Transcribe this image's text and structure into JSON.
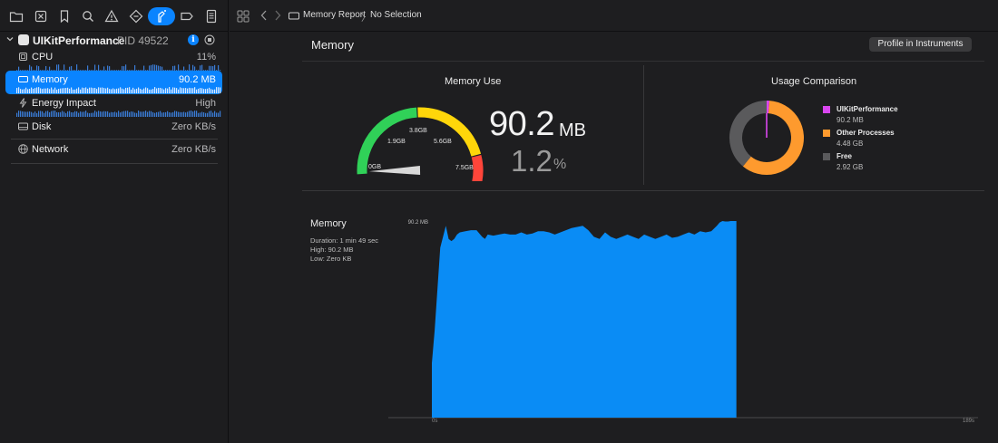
{
  "toolbar": {
    "icons": [
      "folder-icon",
      "close-square-icon",
      "bookmark-icon",
      "search-icon",
      "warning-icon",
      "tag-diamond-icon",
      "debug-spray-icon",
      "label-tag-icon",
      "report-list-icon"
    ]
  },
  "process": {
    "name": "UIKitPerformance",
    "pid": "PID 49522"
  },
  "gauges": [
    {
      "label": "CPU",
      "value": "11%",
      "icon": "cpu-chip-icon"
    },
    {
      "label": "Memory",
      "value": "90.2 MB",
      "icon": "memory-icon",
      "selected": true
    },
    {
      "label": "Energy Impact",
      "value": "High",
      "icon": "bolt-icon"
    },
    {
      "label": "Disk",
      "value": "Zero KB/s",
      "icon": "disk-icon"
    },
    {
      "label": "Network",
      "value": "Zero KB/s",
      "icon": "globe-icon"
    }
  ],
  "breadcrumb": {
    "report": "Memory Report",
    "separator": "〉",
    "selection": "No Selection"
  },
  "report": {
    "title": "Memory",
    "profile_button": "Profile in Instruments"
  },
  "memory_use": {
    "title": "Memory Use",
    "gauge_labels": [
      "0GB",
      "1.9GB",
      "3.8GB",
      "5.6GB",
      "7.5GB"
    ],
    "value": "90.2",
    "unit": "MB",
    "percent": "1.2",
    "percent_unit": "%",
    "needle_fraction": 0.012,
    "colors": {
      "green": "#30d158",
      "yellow": "#ffd60a",
      "red": "#ff453a"
    }
  },
  "usage_comparison": {
    "title": "Usage Comparison",
    "items": [
      {
        "name": "UIKitPerformance",
        "value": "90.2 MB",
        "color": "#d946ef",
        "gb": 0.0902
      },
      {
        "name": "Other Processes",
        "value": "4.48 GB",
        "color": "#fe9a2e",
        "gb": 4.48
      },
      {
        "name": "Free",
        "value": "2.92 GB",
        "color": "#5a5a5c",
        "gb": 2.92
      }
    ]
  },
  "chart_data": {
    "type": "area",
    "title": "Memory",
    "meta": [
      "Duration: 1 min 49 sec",
      "High: 90.2 MB",
      "Low: Zero KB"
    ],
    "y_max_label": "90.2 MB",
    "x_tick_labels": [
      "0s",
      "189s"
    ],
    "xlim": [
      0,
      189
    ],
    "ylim": [
      0,
      90.2
    ],
    "color": "#0a8cf5",
    "series": [
      {
        "x": [
          0,
          1,
          3,
          5,
          6,
          7,
          8,
          9,
          10,
          12,
          14,
          16,
          18,
          19,
          20,
          22,
          24,
          26,
          28,
          30,
          32,
          34,
          36,
          38,
          40,
          42,
          44,
          46,
          48,
          50,
          52,
          54,
          56,
          58,
          60,
          62,
          64,
          66,
          68,
          70,
          72,
          74,
          76,
          78,
          80,
          82,
          84,
          86,
          88,
          90,
          92,
          94,
          96,
          98,
          100,
          102,
          103,
          104,
          105,
          106,
          107,
          108,
          109
        ],
        "y": [
          25,
          40,
          78,
          88,
          82,
          81,
          82,
          84,
          85,
          85.5,
          86,
          86,
          83,
          82,
          84,
          83.5,
          84,
          84.5,
          84,
          84,
          85,
          84,
          84.5,
          85.5,
          85.5,
          85,
          84,
          85,
          86,
          87,
          87.5,
          88,
          86,
          83,
          82,
          85,
          83,
          82,
          83,
          84,
          83,
          82,
          84,
          83,
          82,
          83,
          84,
          82.5,
          83,
          84,
          85,
          84,
          85.5,
          85,
          85.5,
          88,
          89.5,
          90.2,
          90,
          90,
          90.2,
          90.2,
          90.2
        ]
      }
    ]
  }
}
